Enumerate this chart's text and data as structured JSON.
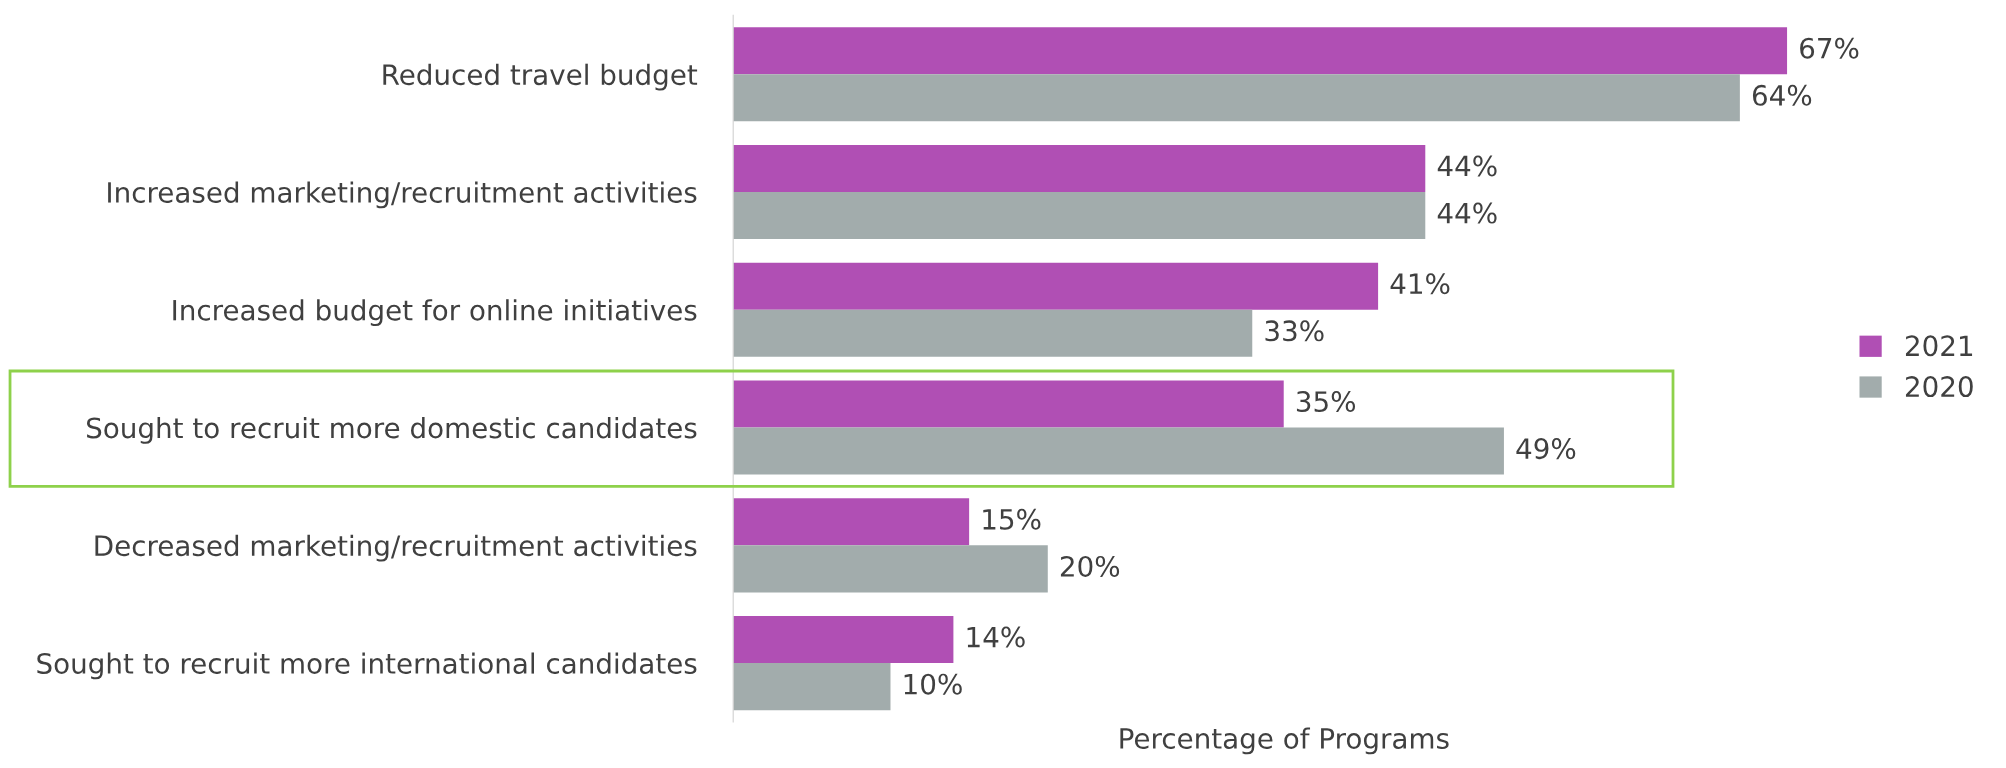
{
  "chart_data": {
    "type": "bar",
    "orientation": "horizontal",
    "xlabel": "Percentage of Programs",
    "categories": [
      "Reduced travel budget",
      "Increased marketing/recruitment activities",
      "Increased budget for online initiatives",
      "Sought to recruit more domestic candidates",
      "Decreased marketing/recruitment activities",
      "Sought to recruit more international candidates"
    ],
    "series": [
      {
        "name": "2021",
        "color": "#b04fb4",
        "values": [
          67,
          44,
          41,
          35,
          15,
          14
        ],
        "value_labels": [
          "67%",
          "44%",
          "41%",
          "35%",
          "15%",
          "14%"
        ]
      },
      {
        "name": "2020",
        "color": "#a2acac",
        "values": [
          64,
          44,
          33,
          49,
          20,
          10
        ],
        "value_labels": [
          "64%",
          "44%",
          "33%",
          "49%",
          "20%",
          "10%"
        ]
      }
    ],
    "legend": "right",
    "grid": false,
    "tick_labels": "y"
  }
}
